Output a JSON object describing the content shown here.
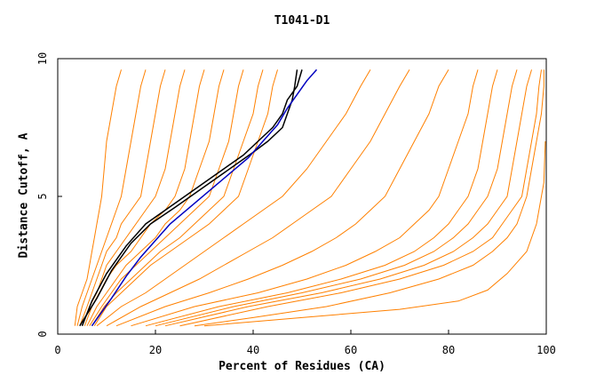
{
  "chart_data": {
    "type": "line",
    "title": "T1041-D1",
    "xlabel": "Percent of Residues (CA)",
    "ylabel": "Distance Cutoff, A",
    "xlim": [
      0,
      100
    ],
    "ylim": [
      0,
      10
    ],
    "x_ticks": [
      "0",
      "20",
      "40",
      "60",
      "80",
      "100"
    ],
    "y_ticks": [
      "0",
      "5",
      "10"
    ],
    "grid": false,
    "colors": {
      "others": "#ff8000",
      "black": "#000000",
      "blue": "#0000c0"
    },
    "series": [
      {
        "group": "others",
        "x": [
          13,
          12,
          11,
          10,
          9.5,
          9,
          8.5,
          8,
          7.5,
          7,
          6.5,
          6,
          5,
          4,
          3.5
        ],
        "y": [
          9.6,
          9,
          8,
          7,
          6,
          5,
          4.5,
          4,
          3.5,
          3,
          2.5,
          2,
          1.5,
          1,
          0.3
        ]
      },
      {
        "group": "others",
        "x": [
          18,
          17,
          16,
          15,
          14,
          13,
          12,
          11,
          10,
          9,
          8,
          7,
          6,
          5,
          4
        ],
        "y": [
          9.6,
          9,
          8,
          7,
          6,
          5,
          4.5,
          4,
          3.5,
          3,
          2.5,
          2,
          1.5,
          1,
          0.3
        ]
      },
      {
        "group": "others",
        "x": [
          22,
          21,
          20,
          19,
          18,
          17,
          15,
          13,
          12,
          10,
          9,
          8,
          7,
          6,
          4.5
        ],
        "y": [
          9.6,
          9,
          8,
          7,
          6,
          5,
          4.5,
          4,
          3.5,
          3,
          2.5,
          2,
          1.5,
          1,
          0.3
        ]
      },
      {
        "group": "others",
        "x": [
          26,
          25,
          24,
          23,
          22,
          20,
          18,
          16,
          14,
          12,
          10,
          9,
          8,
          6.5,
          5
        ],
        "y": [
          9.6,
          9,
          8,
          7,
          6,
          5,
          4.5,
          4,
          3.5,
          3,
          2.5,
          2,
          1.5,
          1,
          0.3
        ]
      },
      {
        "group": "others",
        "x": [
          30,
          29,
          28,
          27,
          26,
          24,
          22,
          19,
          17,
          15,
          12,
          10,
          8.5,
          7,
          5.5
        ],
        "y": [
          9.6,
          9,
          8,
          7,
          6,
          5,
          4.5,
          4,
          3.5,
          3,
          2.5,
          2,
          1.5,
          1,
          0.3
        ]
      },
      {
        "group": "others",
        "x": [
          34,
          33,
          32,
          31,
          29,
          27,
          25,
          22,
          20,
          17,
          14,
          12,
          10,
          8,
          6
        ],
        "y": [
          9.6,
          9,
          8,
          7,
          6,
          5,
          4.5,
          4,
          3.5,
          3,
          2.5,
          2,
          1.5,
          1,
          0.3
        ]
      },
      {
        "group": "others",
        "x": [
          38,
          37,
          36,
          35,
          33,
          31,
          28,
          25,
          22,
          19,
          16,
          13,
          11,
          9,
          6.5
        ],
        "y": [
          9.6,
          9,
          8,
          7,
          6,
          5,
          4.5,
          4,
          3.5,
          3,
          2.5,
          2,
          1.5,
          1,
          0.3
        ]
      },
      {
        "group": "others",
        "x": [
          42,
          41,
          40,
          38,
          36,
          34,
          31,
          28,
          25,
          21,
          18,
          15,
          12,
          9.5,
          7
        ],
        "y": [
          9.6,
          9,
          8,
          7,
          6,
          5,
          4.5,
          4,
          3.5,
          3,
          2.5,
          2,
          1.5,
          1,
          0.3
        ]
      },
      {
        "group": "others",
        "x": [
          45,
          44,
          43,
          41,
          39,
          37,
          34,
          31,
          27,
          23,
          19,
          16,
          13,
          10,
          7.5
        ],
        "y": [
          9.6,
          9,
          8,
          7,
          6,
          5,
          4.5,
          4,
          3.5,
          3,
          2.5,
          2,
          1.5,
          1,
          0.3
        ]
      },
      {
        "group": "others",
        "x": [
          64,
          62,
          59,
          55,
          51,
          46,
          42,
          38,
          34,
          30,
          26,
          22,
          18,
          13,
          8
        ],
        "y": [
          9.6,
          9,
          8,
          7,
          6,
          5,
          4.5,
          4,
          3.5,
          3,
          2.5,
          2,
          1.5,
          1,
          0.3
        ]
      },
      {
        "group": "others",
        "x": [
          72,
          70,
          67,
          64,
          60,
          56,
          52,
          48,
          44,
          39,
          34,
          29,
          23,
          17,
          10
        ],
        "y": [
          9.6,
          9,
          8,
          7,
          6,
          5,
          4.5,
          4,
          3.5,
          3,
          2.5,
          2,
          1.5,
          1,
          0.3
        ]
      },
      {
        "group": "others",
        "x": [
          80,
          78,
          76,
          73,
          70,
          67,
          64,
          61,
          57,
          52,
          46,
          39,
          31,
          22,
          12
        ],
        "y": [
          9.6,
          9,
          8,
          7,
          6,
          5,
          4.5,
          4,
          3.5,
          3,
          2.5,
          2,
          1.5,
          1,
          0.3
        ]
      },
      {
        "group": "others",
        "x": [
          86,
          85,
          84,
          82,
          80,
          78,
          76,
          73,
          70,
          65,
          59,
          51,
          41,
          28,
          15
        ],
        "y": [
          9.6,
          9,
          8,
          7,
          6,
          5,
          4.5,
          4,
          3.5,
          3,
          2.5,
          2,
          1.5,
          1,
          0.3
        ]
      },
      {
        "group": "others",
        "x": [
          90,
          89,
          88,
          87,
          86,
          84,
          82,
          80,
          77,
          73,
          67,
          58,
          47,
          33,
          18
        ],
        "y": [
          9.6,
          9,
          8,
          7,
          6,
          5,
          4.5,
          4,
          3.5,
          3,
          2.5,
          2,
          1.5,
          1,
          0.3
        ]
      },
      {
        "group": "others",
        "x": [
          94,
          93,
          92,
          91,
          90,
          88,
          86,
          84,
          81,
          77,
          71,
          62,
          50,
          36,
          20
        ],
        "y": [
          9.6,
          9,
          8,
          7,
          6,
          5,
          4.5,
          4,
          3.5,
          3,
          2.5,
          2,
          1.5,
          1,
          0.3
        ]
      },
      {
        "group": "others",
        "x": [
          97,
          96,
          95,
          94,
          93,
          92,
          90,
          88,
          85,
          81,
          75,
          66,
          54,
          39,
          22
        ],
        "y": [
          9.6,
          9,
          8,
          7,
          6,
          5,
          4.5,
          4,
          3.5,
          3,
          2.5,
          2,
          1.5,
          1,
          0.3
        ]
      },
      {
        "group": "others",
        "x": [
          99,
          98.5,
          98,
          97,
          96,
          95,
          93,
          91,
          89,
          85,
          79,
          70,
          58,
          43,
          25
        ],
        "y": [
          9.6,
          9,
          8,
          7,
          6,
          5,
          4.5,
          4,
          3.5,
          3,
          2.5,
          2,
          1.5,
          1,
          0.3
        ]
      },
      {
        "group": "others",
        "x": [
          99.5,
          99.5,
          99,
          98,
          97,
          96,
          95,
          94,
          92,
          89,
          85,
          78,
          68,
          55,
          40,
          28
        ],
        "y": [
          9.6,
          9,
          8,
          7,
          6,
          5,
          4.5,
          4,
          3.5,
          3,
          2.5,
          2,
          1.5,
          1,
          0.6,
          0.3
        ]
      },
      {
        "group": "others",
        "x": [
          30,
          50,
          70,
          82,
          88,
          92,
          96,
          98,
          99.5,
          99.8
        ],
        "y": [
          0.3,
          0.6,
          0.9,
          1.2,
          1.6,
          2.2,
          3,
          4,
          5.5,
          7
        ]
      },
      {
        "group": "black",
        "x": [
          50,
          49,
          47,
          46,
          44,
          41,
          38,
          34,
          30,
          26,
          22,
          18,
          14,
          10,
          7,
          5
        ],
        "y": [
          9.6,
          9,
          8.5,
          8,
          7.5,
          7,
          6.5,
          6,
          5.5,
          5,
          4.5,
          4,
          3.2,
          2.2,
          1.2,
          0.3
        ]
      },
      {
        "group": "black",
        "x": [
          49,
          48.5,
          48,
          47,
          46,
          43,
          40,
          36,
          32,
          28,
          24,
          19,
          15,
          11,
          8,
          4.5
        ],
        "y": [
          9.6,
          9,
          8.5,
          8,
          7.5,
          7,
          6.6,
          6.1,
          5.6,
          5.1,
          4.6,
          4,
          3.3,
          2.3,
          1.3,
          0.3
        ]
      },
      {
        "group": "blue",
        "x": [
          53,
          51,
          49,
          47,
          45,
          42,
          39,
          35,
          31,
          27,
          23,
          20,
          17,
          14,
          11,
          7
        ],
        "y": [
          9.6,
          9.2,
          8.7,
          8.2,
          7.6,
          7,
          6.4,
          5.8,
          5.2,
          4.6,
          4,
          3.4,
          2.8,
          2.1,
          1.3,
          0.3
        ]
      }
    ]
  }
}
